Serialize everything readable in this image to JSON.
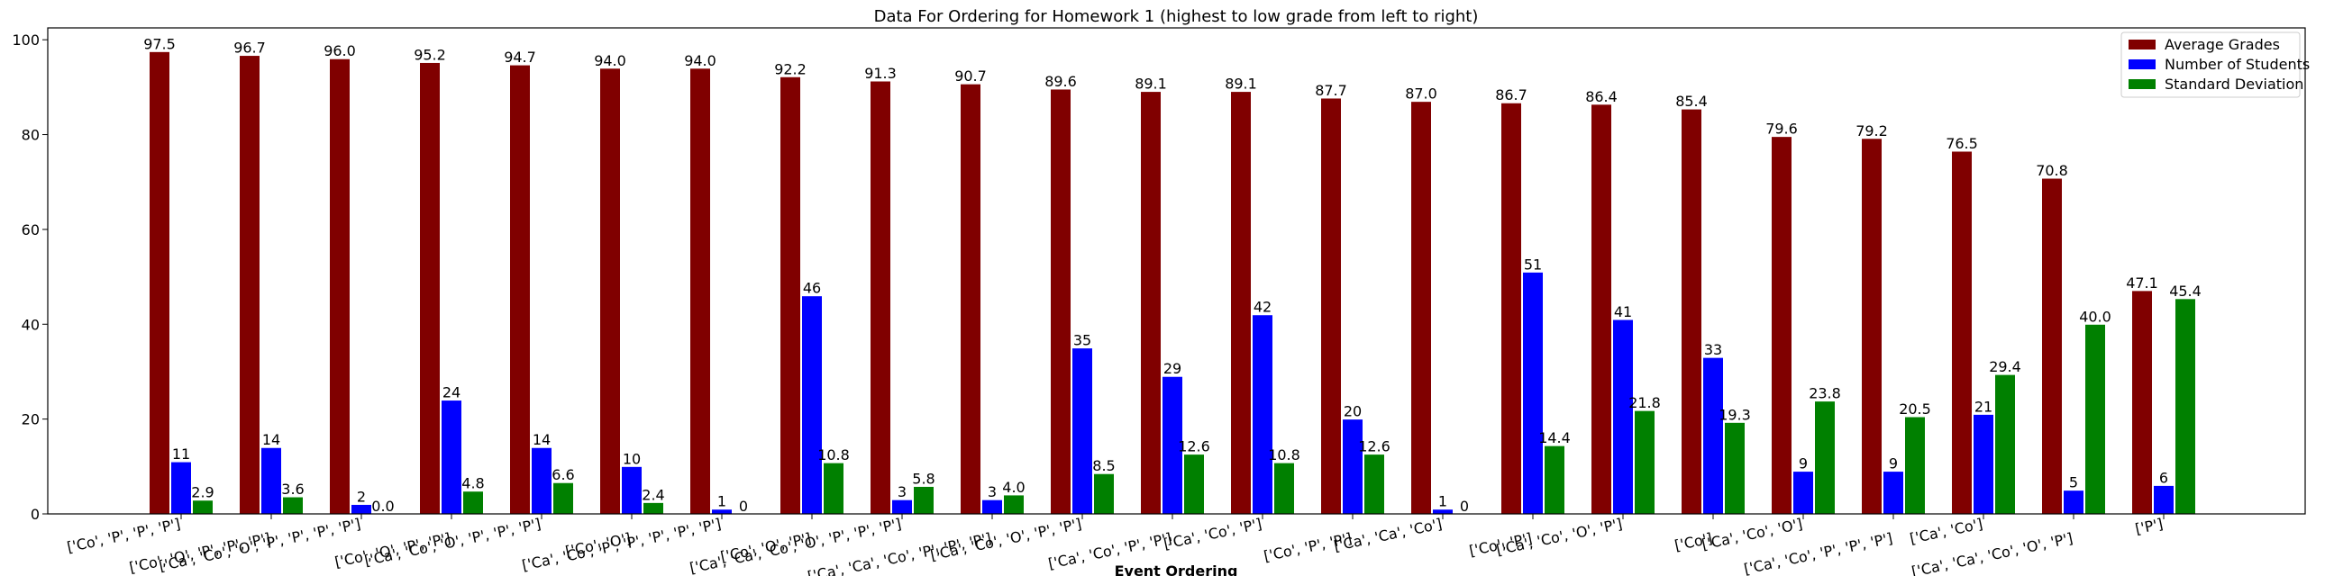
{
  "chart_data": {
    "type": "bar",
    "title": "Data For Ordering for Homework 1 (highest to low grade from left to right)",
    "x_label": "Event Ordering",
    "categories": [
      "['Co', 'P', 'P', 'P']",
      "['Co', 'O', 'P', 'P', 'P']",
      "['Ca', 'Co', 'O', 'P', 'P', 'P', 'P']",
      "['Co', 'O', 'P', 'P']",
      "['Ca', 'Co', 'O', 'P', 'P', 'P']",
      "['Co', 'O']",
      "['Ca', 'Co', 'P', 'P', 'P', 'P', 'P']",
      "['Co', 'O', 'P']",
      "['Ca', 'Ca', 'Co', 'O', 'P', 'P', 'P']",
      "['Ca', 'Ca', 'Co', 'P', 'P', 'P']",
      "['Ca', 'Co', 'O', 'P', 'P']",
      "['Ca', 'Co', 'P', 'P']",
      "['Ca', 'Co', 'P']",
      "['Co', 'P', 'P']",
      "['Ca', 'Ca', 'Co']",
      "['Co', 'P']",
      "['Ca', 'Co', 'O', 'P']",
      "['Co']",
      "['Ca', 'Co', 'O']",
      "['Ca', 'Co', 'P', 'P', 'P']",
      "['Ca', 'Co']",
      "['Ca', 'Ca', 'Co', 'O', 'P']",
      "['P']"
    ],
    "series": [
      {
        "name": "Average Grades",
        "color": "#800000",
        "values": [
          97.5,
          96.7,
          96.0,
          95.2,
          94.7,
          94.0,
          94.0,
          92.2,
          91.3,
          90.7,
          89.6,
          89.1,
          89.1,
          87.7,
          87.0,
          86.7,
          86.4,
          85.4,
          79.6,
          79.2,
          76.5,
          70.8,
          47.1
        ],
        "value_labels": [
          "97.5",
          "96.7",
          "96.0",
          "95.2",
          "94.7",
          "94.0",
          "94.0",
          "92.2",
          "91.3",
          "90.7",
          "89.6",
          "89.1",
          "89.1",
          "87.7",
          "87.0",
          "86.7",
          "86.4",
          "85.4",
          "79.6",
          "79.2",
          "76.5",
          "70.8",
          "47.1"
        ]
      },
      {
        "name": "Number of Students",
        "color": "#0000ff",
        "values": [
          11,
          14,
          2,
          24,
          14,
          10,
          1,
          46,
          3,
          3,
          35,
          29,
          42,
          20,
          1,
          51,
          41,
          33,
          9,
          9,
          21,
          5,
          6
        ],
        "value_labels": [
          "11",
          "14",
          "2",
          "24",
          "14",
          "10",
          "1",
          "46",
          "3",
          "3",
          "35",
          "29",
          "42",
          "20",
          "1",
          "51",
          "41",
          "33",
          "9",
          "9",
          "21",
          "5",
          "6"
        ]
      },
      {
        "name": "Standard Deviation",
        "color": "#008000",
        "values": [
          2.9,
          3.6,
          0.0,
          4.8,
          6.6,
          2.4,
          0,
          10.8,
          5.8,
          4.0,
          8.5,
          12.6,
          10.8,
          12.6,
          0,
          14.4,
          21.8,
          19.3,
          23.8,
          20.5,
          29.4,
          40.0,
          45.4
        ],
        "value_labels": [
          "2.9",
          "3.6",
          "0.0",
          "4.8",
          "6.6",
          "2.4",
          "0",
          "10.8",
          "5.8",
          "4.0",
          "8.5",
          "12.6",
          "10.8",
          "12.6",
          "0",
          "14.4",
          "21.8",
          "19.3",
          "23.8",
          "20.5",
          "29.4",
          "40.0",
          "45.4"
        ]
      }
    ],
    "ylim": [
      0,
      102.5
    ],
    "yticks": [
      0,
      20,
      40,
      60,
      80,
      100
    ],
    "legend": "upper-right"
  }
}
